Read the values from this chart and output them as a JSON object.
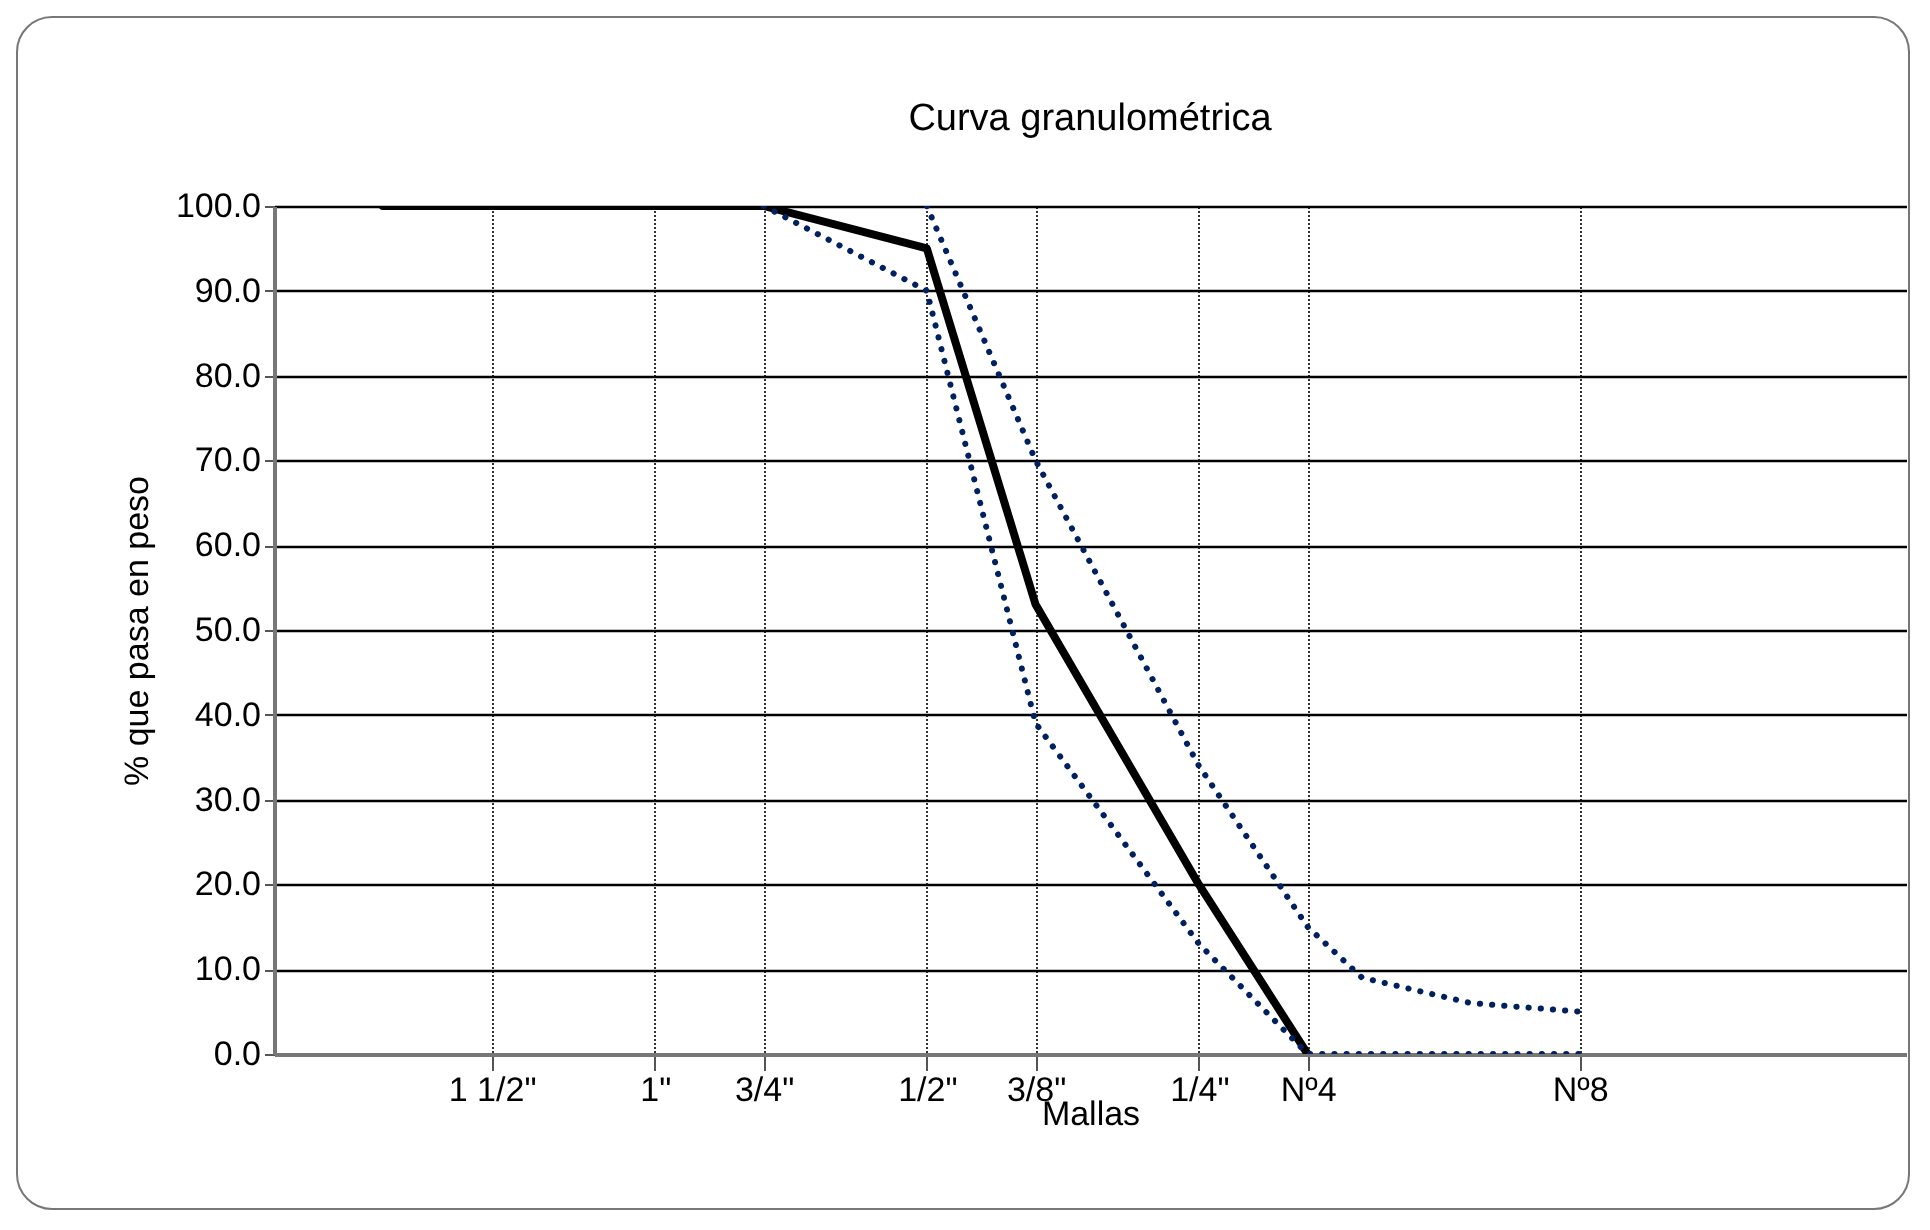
{
  "chart_data": {
    "type": "line",
    "title": "Curva granulométrica",
    "xlabel": "Mallas",
    "ylabel": "% que pasa en peso",
    "grid": true,
    "categories": [
      null,
      null,
      null,
      null,
      "1 1/2\"",
      null,
      null,
      "1\"",
      null,
      "3/4\"",
      null,
      null,
      "1/2\"",
      null,
      "3/8\"",
      null,
      null,
      "1/4\"",
      null,
      "Nº4",
      null,
      null,
      null,
      null,
      "Nº8",
      null,
      null,
      null,
      null,
      null,
      null
    ],
    "ylim": [
      0,
      100
    ],
    "yticks": [
      {
        "value": 0,
        "label": "0.0"
      },
      {
        "value": 10,
        "label": "10.0"
      },
      {
        "value": 20,
        "label": "20.0"
      },
      {
        "value": 30,
        "label": "30.0"
      },
      {
        "value": 40,
        "label": "40.0"
      },
      {
        "value": 50,
        "label": "50.0"
      },
      {
        "value": 60,
        "label": "60.0"
      },
      {
        "value": 70,
        "label": "70.0"
      },
      {
        "value": 80,
        "label": "80.0"
      },
      {
        "value": 90,
        "label": "90.0"
      },
      {
        "value": 100,
        "label": "100.0"
      }
    ],
    "series": [
      {
        "color": "#000000",
        "line_style": "solid",
        "values": [
          null,
          null,
          100,
          null,
          100,
          null,
          null,
          100,
          null,
          100,
          null,
          null,
          95,
          null,
          53,
          null,
          null,
          20,
          null,
          0,
          null,
          null,
          null,
          null,
          null,
          null,
          null,
          null,
          null,
          null,
          null
        ]
      },
      {
        "color": "#002060",
        "line_style": "dotted",
        "values": [
          null,
          null,
          null,
          null,
          null,
          null,
          null,
          null,
          null,
          null,
          null,
          null,
          100,
          null,
          70,
          null,
          null,
          34,
          null,
          15,
          9,
          null,
          6,
          null,
          5,
          null,
          null,
          null,
          null,
          null,
          null
        ]
      },
      {
        "color": "#002060",
        "line_style": "dotted",
        "values": [
          null,
          null,
          null,
          null,
          null,
          null,
          null,
          null,
          null,
          100,
          null,
          null,
          90,
          null,
          39,
          null,
          null,
          13,
          null,
          0,
          null,
          null,
          null,
          null,
          0,
          null,
          null,
          null,
          null,
          null,
          null
        ]
      }
    ]
  }
}
